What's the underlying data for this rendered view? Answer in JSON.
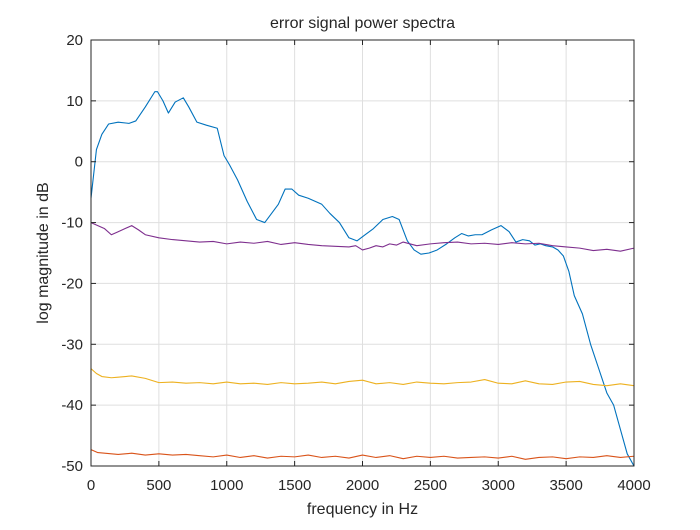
{
  "chart_data": {
    "type": "line",
    "title": "error signal power spectra",
    "xlabel": "frequency in Hz",
    "ylabel": "log magnitude in dB",
    "xlim": [
      0,
      4000
    ],
    "ylim": [
      -50,
      20
    ],
    "xticks": [
      0,
      500,
      1000,
      1500,
      2000,
      2500,
      3000,
      3500,
      4000
    ],
    "yticks": [
      20,
      10,
      0,
      -10,
      -20,
      -30,
      -40,
      -50
    ],
    "grid": true,
    "series": [
      {
        "color": "#0072BD",
        "x": [
          0,
          40,
          80,
          130,
          200,
          280,
          330,
          400,
          470,
          490,
          530,
          570,
          620,
          680,
          720,
          780,
          850,
          930,
          980,
          1020,
          1080,
          1150,
          1220,
          1280,
          1330,
          1380,
          1430,
          1480,
          1530,
          1600,
          1650,
          1700,
          1760,
          1830,
          1900,
          1960,
          2020,
          2080,
          2150,
          2220,
          2270,
          2330,
          2380,
          2430,
          2490,
          2550,
          2620,
          2680,
          2730,
          2780,
          2830,
          2880,
          2950,
          3020,
          3080,
          3130,
          3180,
          3230,
          3270,
          3310,
          3350,
          3400,
          3440,
          3480,
          3520,
          3560,
          3620,
          3680,
          3740,
          3800,
          3850,
          3900,
          3950,
          4000
        ],
        "values": [
          -6,
          2,
          4.5,
          6.2,
          6.5,
          6.3,
          6.7,
          9,
          11.5,
          11.5,
          10,
          8,
          9.8,
          10.5,
          9,
          6.5,
          6,
          5.5,
          1,
          -0.5,
          -3,
          -6.5,
          -9.5,
          -10,
          -8.5,
          -7,
          -4.5,
          -4.5,
          -5.5,
          -6,
          -6.5,
          -7,
          -8.5,
          -10,
          -12.5,
          -13,
          -12,
          -11,
          -9.5,
          -9,
          -9.5,
          -13,
          -14.5,
          -15.2,
          -15,
          -14.5,
          -13.5,
          -12.5,
          -11.8,
          -12.2,
          -12,
          -12,
          -11.2,
          -10.5,
          -11.5,
          -13.2,
          -12.8,
          -13,
          -13.7,
          -13.5,
          -13.8,
          -14,
          -14.5,
          -15.5,
          -18,
          -22,
          -25,
          -30,
          -34,
          -38,
          -40,
          -44,
          -48,
          -50
        ]
      },
      {
        "color": "#7E2F8E",
        "x": [
          0,
          50,
          100,
          150,
          200,
          250,
          300,
          350,
          400,
          500,
          600,
          700,
          800,
          900,
          1000,
          1100,
          1200,
          1300,
          1400,
          1500,
          1600,
          1700,
          1800,
          1900,
          1950,
          2000,
          2050,
          2100,
          2150,
          2200,
          2250,
          2300,
          2400,
          2500,
          2600,
          2700,
          2800,
          2900,
          3000,
          3100,
          3200,
          3300,
          3400,
          3500,
          3600,
          3700,
          3800,
          3900,
          4000
        ],
        "values": [
          -10,
          -10.5,
          -11,
          -12,
          -11.5,
          -11,
          -10.5,
          -11.2,
          -12,
          -12.5,
          -12.8,
          -13,
          -13.2,
          -13.1,
          -13.5,
          -13.2,
          -13.4,
          -13.1,
          -13.6,
          -13.3,
          -13.6,
          -13.8,
          -13.9,
          -14,
          -13.8,
          -14.5,
          -14.2,
          -13.8,
          -14,
          -13.5,
          -13.7,
          -13.2,
          -13.8,
          -13.5,
          -13.3,
          -13.2,
          -13.5,
          -13.4,
          -13.6,
          -13.3,
          -13.5,
          -13.4,
          -13.8,
          -14,
          -14.2,
          -14.6,
          -14.4,
          -14.7,
          -14.2
        ]
      },
      {
        "color": "#EDB120",
        "x": [
          0,
          40,
          80,
          150,
          200,
          300,
          400,
          500,
          600,
          700,
          800,
          900,
          1000,
          1100,
          1200,
          1300,
          1400,
          1500,
          1600,
          1700,
          1800,
          1900,
          2000,
          2100,
          2200,
          2300,
          2400,
          2500,
          2600,
          2700,
          2800,
          2900,
          3000,
          3100,
          3200,
          3300,
          3400,
          3500,
          3600,
          3700,
          3800,
          3900,
          4000
        ],
        "values": [
          -34,
          -34.8,
          -35.3,
          -35.5,
          -35.4,
          -35.2,
          -35.6,
          -36.3,
          -36.2,
          -36.4,
          -36.3,
          -36.5,
          -36.2,
          -36.5,
          -36.4,
          -36.6,
          -36.3,
          -36.5,
          -36.4,
          -36.2,
          -36.5,
          -36.1,
          -35.9,
          -36.5,
          -36.3,
          -36.6,
          -36.2,
          -36.4,
          -36.5,
          -36.3,
          -36.2,
          -35.8,
          -36.4,
          -36.5,
          -36.0,
          -36.5,
          -36.6,
          -36.2,
          -36.1,
          -36.6,
          -36.8,
          -36.5,
          -36.8
        ]
      },
      {
        "color": "#D95319",
        "x": [
          0,
          50,
          100,
          200,
          300,
          400,
          500,
          600,
          700,
          800,
          900,
          1000,
          1100,
          1200,
          1300,
          1400,
          1500,
          1600,
          1700,
          1800,
          1900,
          2000,
          2100,
          2200,
          2300,
          2400,
          2500,
          2600,
          2700,
          2800,
          2900,
          3000,
          3100,
          3200,
          3300,
          3400,
          3500,
          3600,
          3700,
          3800,
          3900,
          4000
        ],
        "values": [
          -47.3,
          -47.8,
          -47.9,
          -48.1,
          -47.9,
          -48.2,
          -48,
          -48.2,
          -48.1,
          -48.3,
          -48.5,
          -48.2,
          -48.6,
          -48.3,
          -48.7,
          -48.4,
          -48.5,
          -48.2,
          -48.6,
          -48.4,
          -48.7,
          -48.2,
          -48.6,
          -48.3,
          -48.8,
          -48.4,
          -48.6,
          -48.4,
          -48.7,
          -48.6,
          -48.5,
          -48.7,
          -48.4,
          -48.9,
          -48.6,
          -48.5,
          -48.8,
          -48.5,
          -48.6,
          -48.3,
          -48.6,
          -48.4
        ]
      }
    ]
  }
}
